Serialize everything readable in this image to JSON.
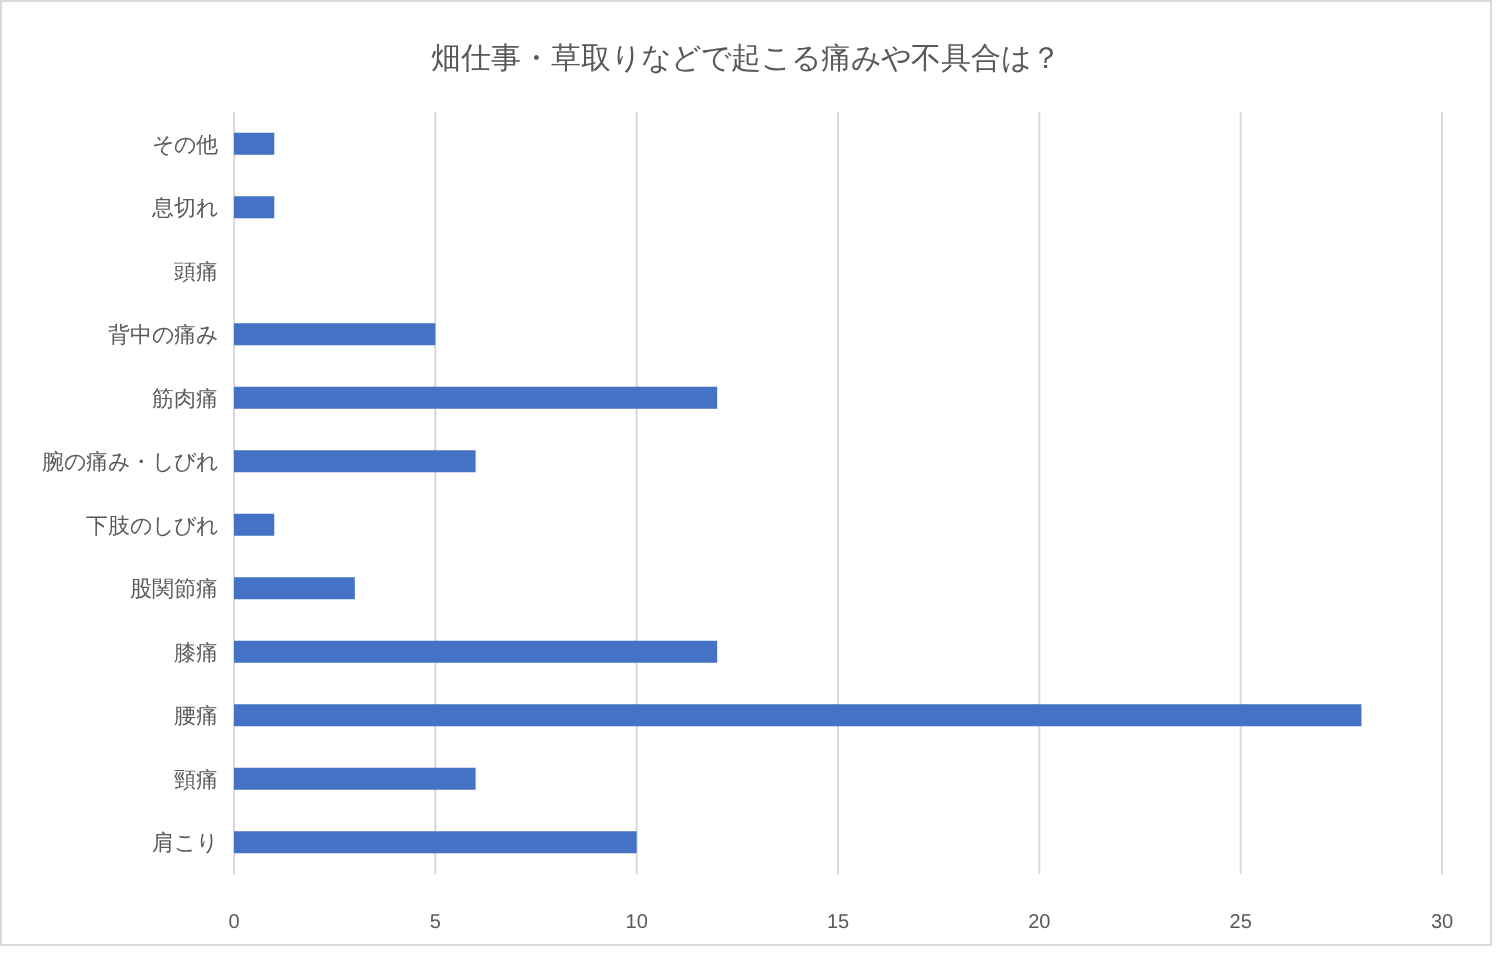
{
  "chart_data": {
    "type": "bar",
    "orientation": "horizontal",
    "title": "畑仕事・草取りなどで起こる痛みや不具合は？",
    "categories": [
      "その他",
      "息切れ",
      "頭痛",
      "背中の痛み",
      "筋肉痛",
      "腕の痛み・しびれ",
      "下肢のしびれ",
      "股関節痛",
      "膝痛",
      "腰痛",
      "頸痛",
      "肩こり"
    ],
    "values": [
      1,
      1,
      0,
      5,
      12,
      6,
      1,
      3,
      12,
      28,
      6,
      10
    ],
    "color": "#4472c4",
    "xlim": [
      0,
      30
    ],
    "xticks": [
      0,
      5,
      10,
      15,
      20,
      25,
      30
    ],
    "grid": "x"
  }
}
